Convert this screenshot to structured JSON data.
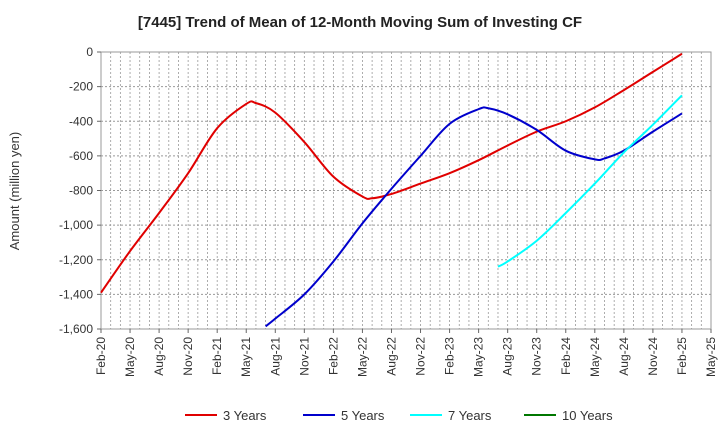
{
  "chart_data": {
    "type": "line",
    "title": "[7445]  Trend of Mean of 12-Month Moving Sum of Investing CF",
    "xlabel": "",
    "ylabel": "Amount (million yen)",
    "ylim": [
      -1600,
      0
    ],
    "yticks": [
      0,
      -200,
      -400,
      -600,
      -800,
      -1000,
      -1200,
      -1400,
      -1600
    ],
    "ytick_labels": [
      "0",
      "-200",
      "-400",
      "-600",
      "-800",
      "-1,000",
      "-1,200",
      "-1,400",
      "-1,600"
    ],
    "x_ticks": [
      "Feb-20",
      "May-20",
      "Aug-20",
      "Nov-20",
      "Feb-21",
      "May-21",
      "Aug-21",
      "Nov-21",
      "Feb-22",
      "May-22",
      "Aug-22",
      "Nov-22",
      "Feb-23",
      "May-23",
      "Aug-23",
      "Nov-23",
      "Feb-24",
      "May-24",
      "Aug-24",
      "Nov-24",
      "Feb-25",
      "May-25"
    ],
    "grid": true,
    "legend_position": "bottom",
    "series": [
      {
        "name": "3 Years",
        "color": "#e00000",
        "points": [
          [
            "Feb-20",
            -1390
          ],
          [
            "May-20",
            -1150
          ],
          [
            "Aug-20",
            -930
          ],
          [
            "Nov-20",
            -700
          ],
          [
            "Feb-21",
            -440
          ],
          [
            "May-21",
            -300
          ],
          [
            "Jun-21",
            -295
          ],
          [
            "Aug-21",
            -350
          ],
          [
            "Nov-21",
            -520
          ],
          [
            "Feb-22",
            -720
          ],
          [
            "May-22",
            -835
          ],
          [
            "Jun-22",
            -845
          ],
          [
            "Aug-22",
            -820
          ],
          [
            "Nov-22",
            -760
          ],
          [
            "Feb-23",
            -700
          ],
          [
            "May-23",
            -625
          ],
          [
            "Aug-23",
            -540
          ],
          [
            "Nov-23",
            -460
          ],
          [
            "Feb-24",
            -400
          ],
          [
            "May-24",
            -320
          ],
          [
            "Aug-24",
            -220
          ],
          [
            "Nov-24",
            -115
          ],
          [
            "Feb-25",
            -10
          ]
        ]
      },
      {
        "name": "5 Years",
        "color": "#0000cc",
        "points": [
          [
            "Jul-21",
            -1585
          ],
          [
            "Aug-21",
            -1540
          ],
          [
            "Nov-21",
            -1400
          ],
          [
            "Feb-22",
            -1210
          ],
          [
            "May-22",
            -990
          ],
          [
            "Aug-22",
            -790
          ],
          [
            "Nov-22",
            -600
          ],
          [
            "Feb-23",
            -415
          ],
          [
            "May-23",
            -330
          ],
          [
            "Jun-23",
            -325
          ],
          [
            "Aug-23",
            -360
          ],
          [
            "Nov-23",
            -450
          ],
          [
            "Feb-24",
            -570
          ],
          [
            "May-24",
            -620
          ],
          [
            "Jun-24",
            -615
          ],
          [
            "Aug-24",
            -570
          ],
          [
            "Nov-24",
            -460
          ],
          [
            "Feb-25",
            -355
          ]
        ]
      },
      {
        "name": "7 Years",
        "color": "#00ffff",
        "points": [
          [
            "Jul-23",
            -1240
          ],
          [
            "Aug-23",
            -1210
          ],
          [
            "Nov-23",
            -1090
          ],
          [
            "Feb-24",
            -930
          ],
          [
            "May-24",
            -760
          ],
          [
            "Aug-24",
            -580
          ],
          [
            "Nov-24",
            -420
          ],
          [
            "Feb-25",
            -250
          ]
        ]
      },
      {
        "name": "10 Years",
        "color": "#007700",
        "points": []
      }
    ]
  }
}
